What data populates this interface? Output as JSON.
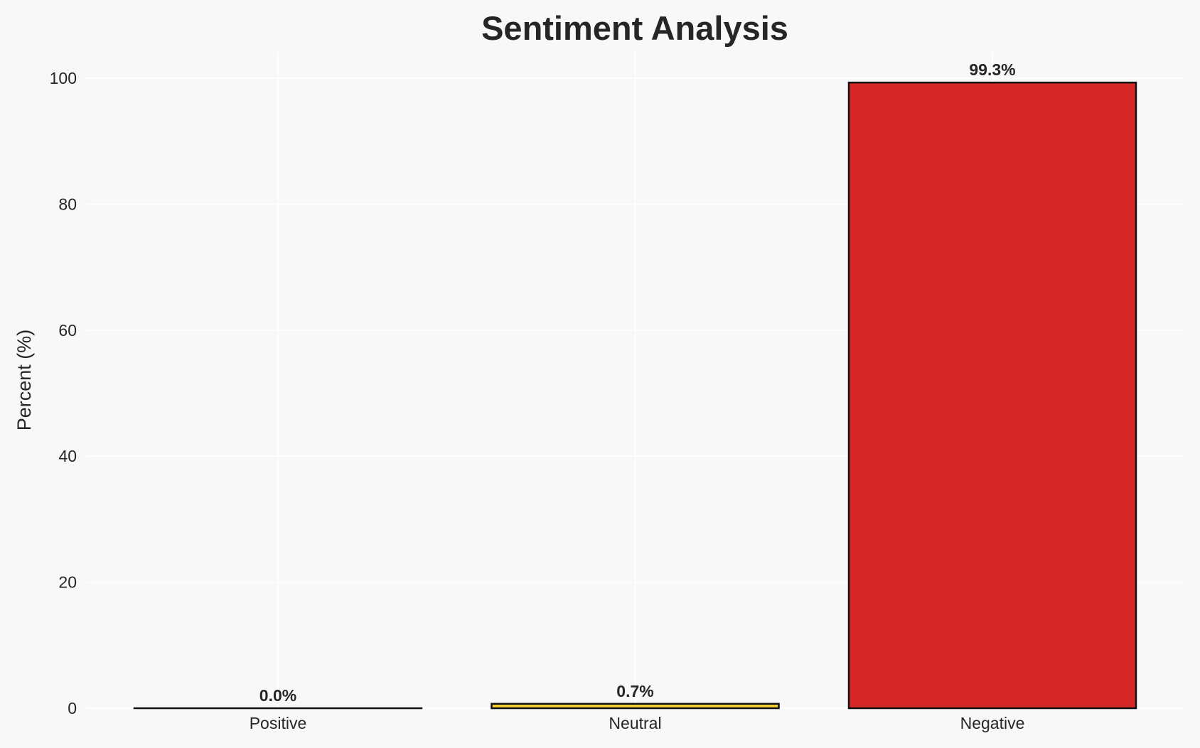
{
  "chart_data": {
    "type": "bar",
    "title": "Sentiment Analysis",
    "xlabel": "",
    "ylabel": "Percent (%)",
    "categories": [
      "Positive",
      "Neutral",
      "Negative"
    ],
    "values": [
      0.0,
      0.7,
      99.3
    ],
    "data_labels": [
      "0.0%",
      "0.7%",
      "99.3%"
    ],
    "colors": [
      "#2ca02c",
      "#f5d033",
      "#d62728"
    ],
    "edge_color": "#111111",
    "ylim": [
      0,
      105
    ],
    "yticks": [
      0,
      20,
      40,
      60,
      80,
      100
    ],
    "grid": true,
    "background": "#f8f8f8"
  }
}
